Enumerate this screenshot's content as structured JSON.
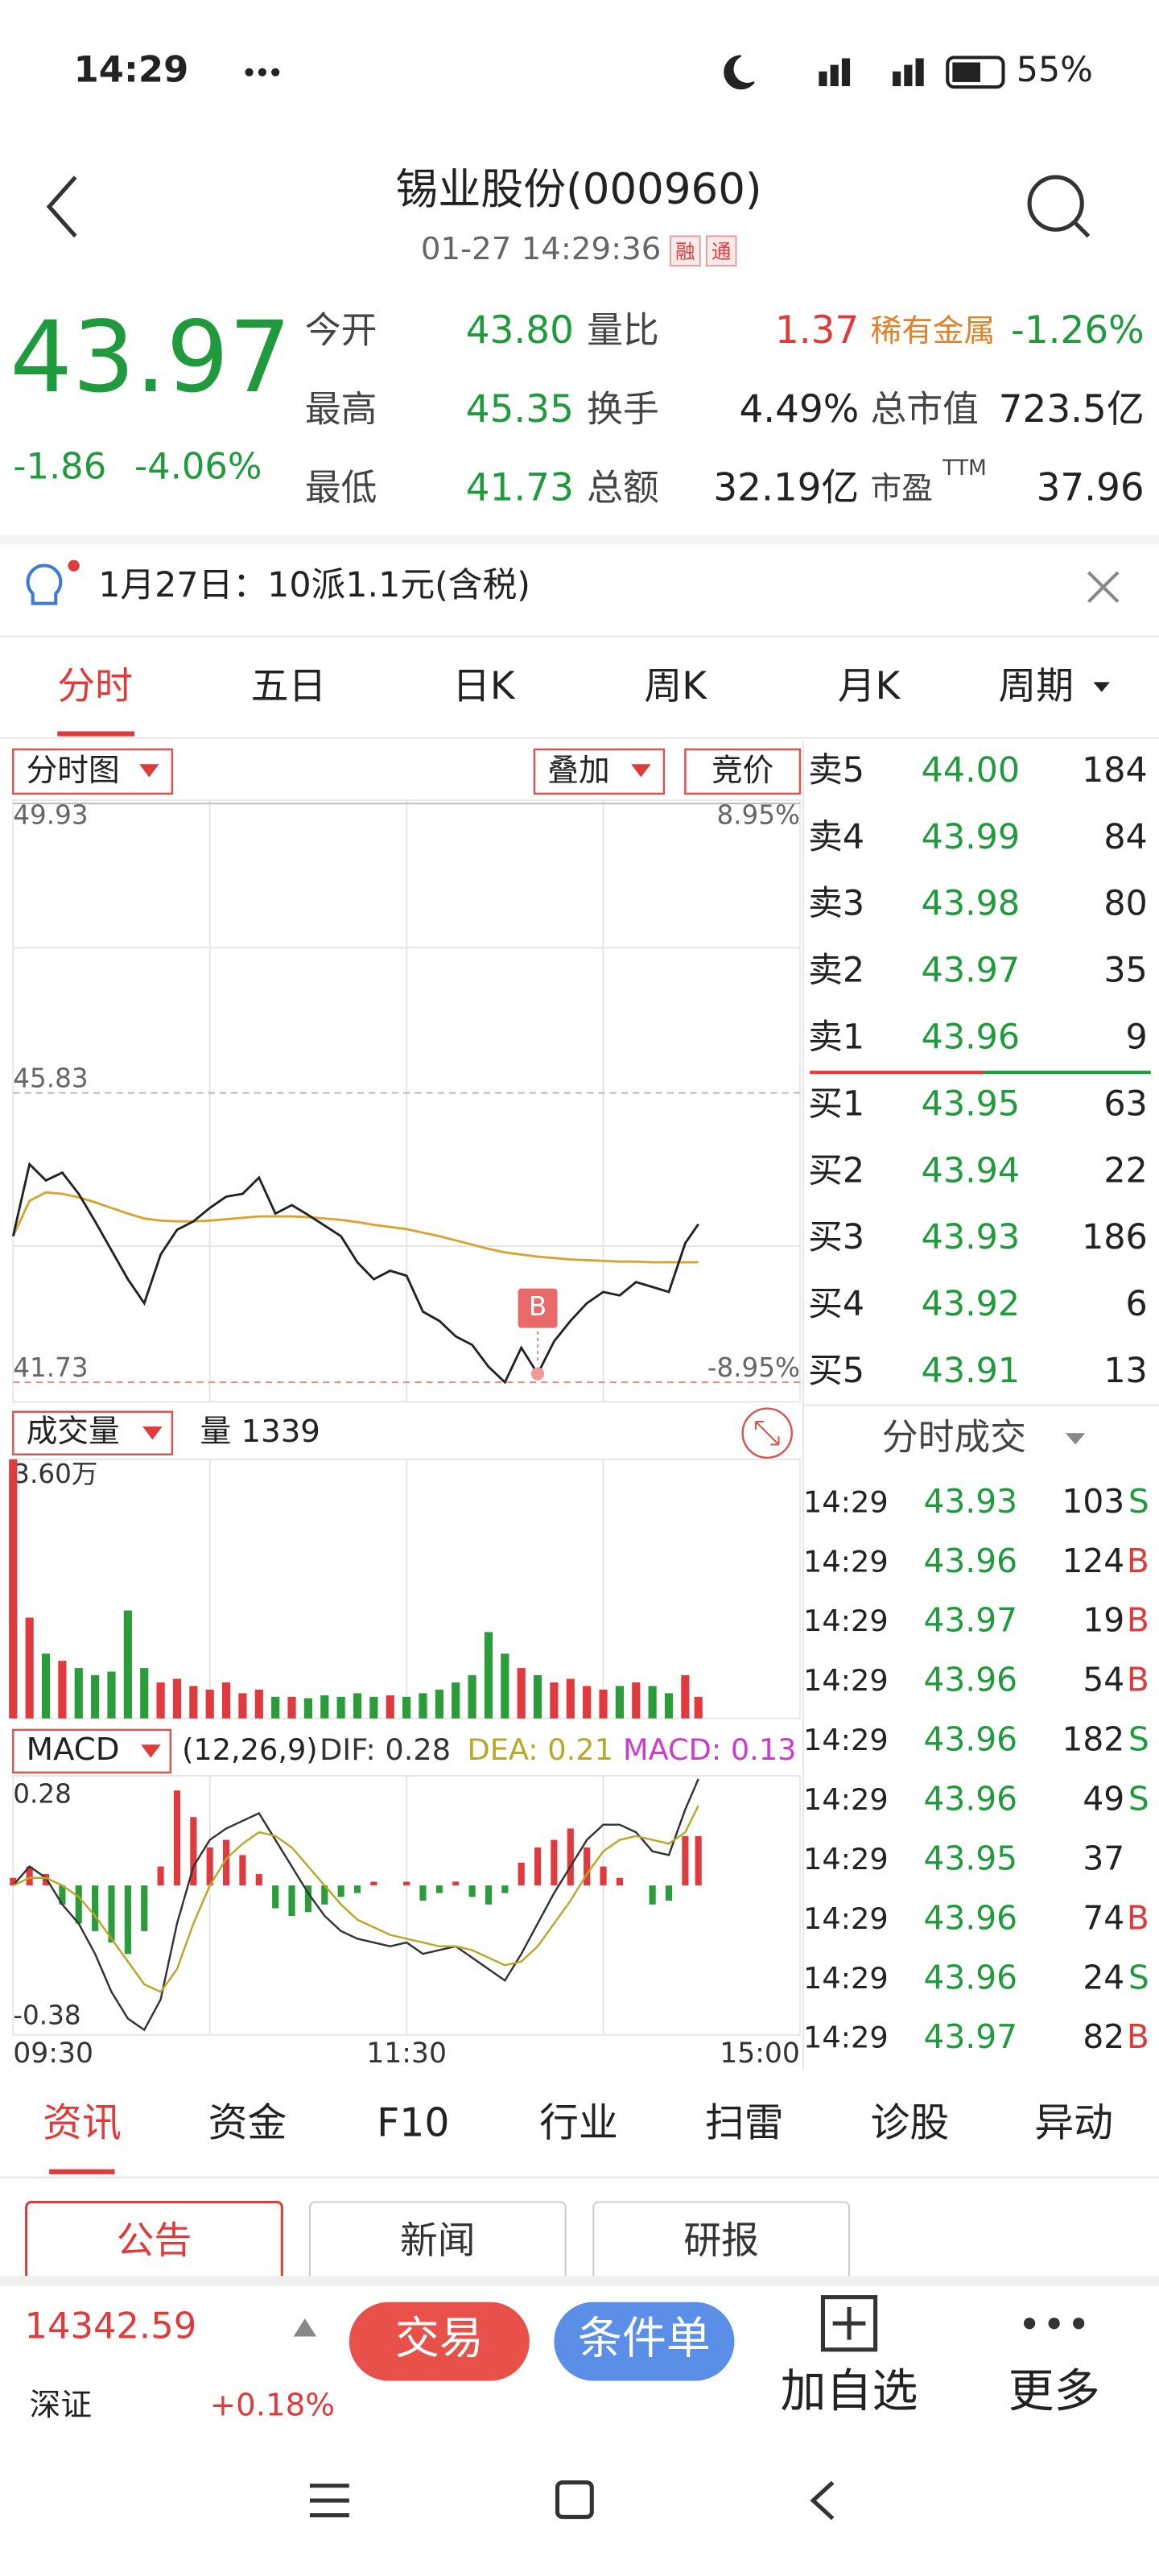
{
  "status_bar": {
    "time": "14:29",
    "battery": "55%"
  },
  "header": {
    "title": "锡业股份(000960)",
    "subtitle": "01-27 14:29:36",
    "badges": [
      "融",
      "通"
    ]
  },
  "quote": {
    "price": "43.97",
    "change": "-1.86",
    "change_pct": "-4.06%",
    "stats": [
      [
        {
          "label": "今开",
          "value": "43.80",
          "color": "#1f9a3c"
        },
        {
          "label": "量比",
          "value": "1.37",
          "color": "#e03a3a"
        },
        {
          "label": "稀有金属",
          "value": "-1.26%",
          "color": "#1f9a3c",
          "label_color": "#e0822a"
        }
      ],
      [
        {
          "label": "最高",
          "value": "45.35",
          "color": "#1f9a3c"
        },
        {
          "label": "换手",
          "value": "4.49%",
          "color": "#222"
        },
        {
          "label": "总市值",
          "value": "723.5亿",
          "color": "#222"
        }
      ],
      [
        {
          "label": "最低",
          "value": "41.73",
          "color": "#1f9a3c"
        },
        {
          "label": "总额",
          "value": "32.19亿",
          "color": "#222"
        },
        {
          "label": "市盈",
          "sup": "TTM",
          "value": "37.96",
          "color": "#222"
        }
      ]
    ]
  },
  "notice": "1月27日：10派1.1元(含税)",
  "tabs": [
    "分时",
    "五日",
    "日K",
    "周K",
    "月K",
    "周期"
  ],
  "chart_controls": [
    "分时图",
    "叠加",
    "竞价"
  ],
  "chart_data": [
    {
      "type": "line",
      "x": [
        "09:30",
        "09:35",
        "09:40",
        "09:45",
        "09:50",
        "09:55",
        "10:00",
        "10:05",
        "10:10",
        "10:15",
        "10:20",
        "10:25",
        "10:30",
        "10:35",
        "10:40",
        "10:45",
        "10:50",
        "10:55",
        "11:00",
        "11:05",
        "11:10",
        "11:15",
        "11:20",
        "11:25",
        "11:30",
        "13:05",
        "13:10",
        "13:15",
        "13:20",
        "13:25",
        "13:30",
        "13:35",
        "13:40",
        "13:45",
        "13:50",
        "13:55",
        "14:00",
        "14:05",
        "14:10",
        "14:15",
        "14:20",
        "14:25",
        "14:29"
      ],
      "xlim": [
        "09:30",
        "15:00"
      ],
      "series": [
        {
          "color": "#222222",
          "values": [
            43.8,
            44.82,
            44.59,
            44.7,
            44.4,
            44.01,
            43.6,
            43.19,
            42.85,
            43.54,
            43.89,
            44.01,
            44.2,
            44.36,
            44.4,
            44.63,
            44.12,
            44.24,
            44.1,
            43.95,
            43.8,
            43.43,
            43.19,
            43.31,
            43.24,
            42.73,
            42.6,
            42.38,
            42.26,
            41.95,
            41.73,
            42.22,
            41.85,
            42.31,
            42.6,
            42.85,
            43.01,
            42.96,
            43.15,
            43.08,
            43.01,
            43.7,
            43.97
          ]
        },
        {
          "color": "#d9a330",
          "values": [
            43.8,
            44.3,
            44.42,
            44.4,
            44.35,
            44.28,
            44.2,
            44.12,
            44.05,
            44.02,
            44.01,
            44.01,
            44.02,
            44.04,
            44.06,
            44.08,
            44.08,
            44.08,
            44.07,
            44.05,
            44.03,
            44.0,
            43.96,
            43.93,
            43.9,
            43.85,
            43.8,
            43.74,
            43.68,
            43.62,
            43.57,
            43.54,
            43.51,
            43.49,
            43.47,
            43.46,
            43.45,
            43.44,
            43.44,
            43.43,
            43.43,
            43.43,
            43.43
          ]
        }
      ],
      "ylim": [
        41.73,
        49.93
      ],
      "yticks": [
        49.93,
        45.83,
        41.73
      ],
      "y2lim": [
        -8.95,
        8.95
      ],
      "y2ticks": [
        {
          "value": 8.95,
          "label": "8.95%"
        },
        {
          "value": -8.95,
          "label": "-8.95%"
        }
      ],
      "annotations": [
        {
          "text": "B",
          "x": "13:40",
          "y": 41.85
        }
      ]
    },
    {
      "type": "bar",
      "title": "成交量",
      "subtitle": "量 1339",
      "up_color": "#e0393e",
      "down_color": "#2a9d3a",
      "values": [
        36000,
        14000,
        9000,
        8000,
        7000,
        6000,
        6500,
        15000,
        7000,
        5000,
        5500,
        4500,
        4000,
        5000,
        3500,
        4000,
        3000,
        3000,
        2800,
        3200,
        3000,
        3500,
        3000,
        3200,
        3000,
        3500,
        4000,
        5000,
        6000,
        12000,
        9000,
        7000,
        6000,
        5000,
        5500,
        4500,
        4000,
        4500,
        5000,
        4500,
        3500,
        6000,
        3000
      ],
      "ylim": [
        0,
        36000
      ],
      "yticks": [
        {
          "value": 36000,
          "label": "3.60万"
        }
      ]
    },
    {
      "type": "macd",
      "title": "MACD",
      "params": "(12,26,9)",
      "indicators": [
        {
          "text": "DIF: 0.28",
          "color": "#333333"
        },
        {
          "text": "DEA: 0.21",
          "color": "#b8a82a"
        },
        {
          "text": "MACD: 0.13",
          "color": "#c93ccf"
        }
      ],
      "series": [
        {
          "color": "#333333",
          "values": [
            0.0,
            0.05,
            0.02,
            -0.05,
            -0.1,
            -0.18,
            -0.28,
            -0.35,
            -0.38,
            -0.3,
            -0.1,
            0.05,
            0.12,
            0.15,
            0.17,
            0.19,
            0.12,
            0.05,
            -0.02,
            -0.08,
            -0.12,
            -0.14,
            -0.15,
            -0.16,
            -0.15,
            -0.18,
            -0.17,
            -0.16,
            -0.19,
            -0.22,
            -0.25,
            -0.18,
            -0.1,
            -0.02,
            0.05,
            0.12,
            0.16,
            0.16,
            0.14,
            0.09,
            0.08,
            0.2,
            0.28
          ]
        },
        {
          "color": "#b8a82a",
          "values": [
            0.0,
            0.02,
            0.02,
            0.0,
            -0.03,
            -0.08,
            -0.14,
            -0.2,
            -0.26,
            -0.28,
            -0.22,
            -0.1,
            0.0,
            0.07,
            0.11,
            0.14,
            0.13,
            0.1,
            0.05,
            0.0,
            -0.05,
            -0.09,
            -0.11,
            -0.13,
            -0.14,
            -0.15,
            -0.16,
            -0.16,
            -0.17,
            -0.19,
            -0.21,
            -0.2,
            -0.16,
            -0.1,
            -0.04,
            0.03,
            0.09,
            0.12,
            0.13,
            0.12,
            0.11,
            0.14,
            0.21
          ]
        }
      ],
      "histogram": {
        "up_color": "#e0393e",
        "down_color": "#2a9d3a",
        "values": [
          0.02,
          0.05,
          0.03,
          -0.05,
          -0.1,
          -0.12,
          -0.15,
          -0.18,
          -0.12,
          0.05,
          0.25,
          0.18,
          0.1,
          0.12,
          0.08,
          0.03,
          -0.06,
          -0.08,
          -0.07,
          -0.05,
          -0.03,
          -0.02,
          0.01,
          0.0,
          0.01,
          -0.04,
          -0.02,
          0.01,
          -0.03,
          -0.05,
          -0.02,
          0.06,
          0.1,
          0.12,
          0.15,
          0.1,
          0.05,
          0.02,
          0.0,
          -0.05,
          -0.04,
          0.13,
          0.13
        ]
      },
      "ylim": [
        -0.38,
        0.28
      ],
      "yticks": [
        0.28,
        -0.38
      ],
      "xticks": [
        "09:30",
        "11:30",
        "15:00"
      ]
    }
  ],
  "order_book": {
    "asks": [
      {
        "label": "卖5",
        "price": "44.00",
        "volume": 184
      },
      {
        "label": "卖4",
        "price": "43.99",
        "volume": 84
      },
      {
        "label": "卖3",
        "price": "43.98",
        "volume": 80
      },
      {
        "label": "卖2",
        "price": "43.97",
        "volume": 35
      },
      {
        "label": "卖1",
        "price": "43.96",
        "volume": 9
      }
    ],
    "bids": [
      {
        "label": "买1",
        "price": "43.95",
        "volume": 63
      },
      {
        "label": "买2",
        "price": "43.94",
        "volume": 22
      },
      {
        "label": "买3",
        "price": "43.93",
        "volume": 186
      },
      {
        "label": "买4",
        "price": "43.92",
        "volume": 6
      },
      {
        "label": "买5",
        "price": "43.91",
        "volume": 13
      }
    ]
  },
  "trades": {
    "title": "分时成交",
    "rows": [
      {
        "time": "14:29",
        "price": "43.93",
        "volume": 103,
        "side": "S"
      },
      {
        "time": "14:29",
        "price": "43.96",
        "volume": 124,
        "side": "B"
      },
      {
        "time": "14:29",
        "price": "43.97",
        "volume": 19,
        "side": "B"
      },
      {
        "time": "14:29",
        "price": "43.96",
        "volume": 54,
        "side": "B"
      },
      {
        "time": "14:29",
        "price": "43.96",
        "volume": 182,
        "side": "S"
      },
      {
        "time": "14:29",
        "price": "43.96",
        "volume": 49,
        "side": "S"
      },
      {
        "time": "14:29",
        "price": "43.95",
        "volume": 37
      },
      {
        "time": "14:29",
        "price": "43.96",
        "volume": 74,
        "side": "B"
      },
      {
        "time": "14:29",
        "price": "43.96",
        "volume": 24,
        "side": "S"
      },
      {
        "time": "14:29",
        "price": "43.97",
        "volume": 82,
        "side": "B"
      }
    ]
  },
  "news_tabs": [
    "资讯",
    "资金",
    "F10",
    "行业",
    "扫雷",
    "诊股",
    "异动"
  ],
  "news_subtabs": [
    "公告",
    "新闻",
    "研报"
  ],
  "bottom_bar": {
    "index_value": "14342.59",
    "index_name": "深证",
    "index_change": "+0.18%",
    "buttons": [
      "交易",
      "条件单"
    ],
    "actions": [
      "加自选",
      "更多"
    ]
  }
}
